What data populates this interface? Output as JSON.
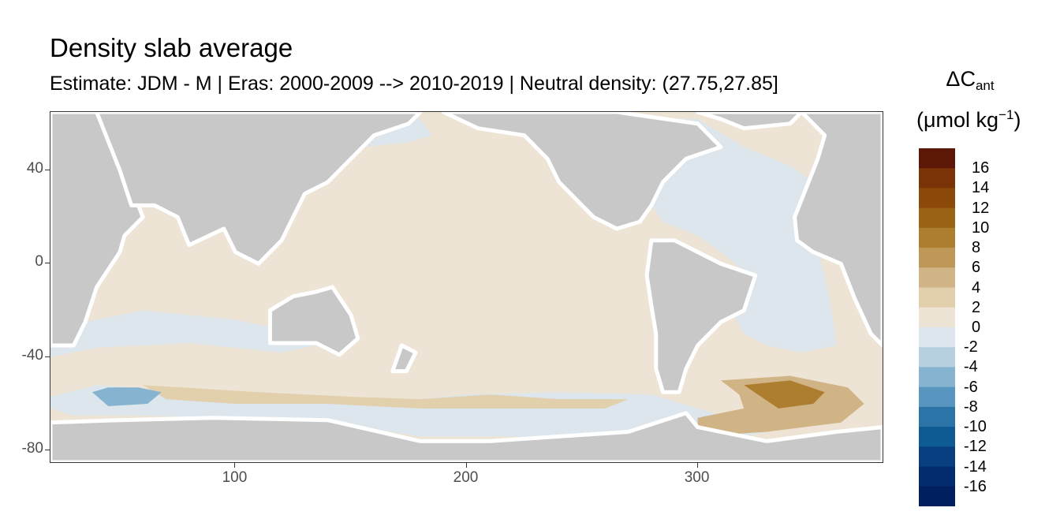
{
  "chart_data": {
    "type": "heatmap",
    "title": "Density slab average",
    "subtitle": "Estimate: JDM - M | Eras: 2000-2009 --> 2010-2019 | Neutral density: (27.75,27.85]",
    "xlabel": "",
    "ylabel": "",
    "x_ticks": [
      100,
      200,
      300
    ],
    "y_ticks": [
      40,
      0,
      -40,
      -80
    ],
    "xlim": [
      20,
      380
    ],
    "ylim": [
      -85,
      65
    ],
    "land_color": "#c8c8c8",
    "missing_color": "#ffffff",
    "legend": {
      "title": "ΔC",
      "title_subscript": "ant",
      "unit_prefix": "(μmol kg",
      "unit_superscript": "−1",
      "unit_suffix": ")",
      "labels": [
        "16",
        "14",
        "12",
        "10",
        "8",
        "6",
        "4",
        "2",
        "0",
        "-2",
        "-4",
        "-6",
        "-8",
        "-10",
        "-12",
        "-14",
        "-16"
      ],
      "colors": [
        "#5c1707",
        "#7a3306",
        "#8c4a0a",
        "#9a6215",
        "#ad7e30",
        "#bf9858",
        "#d0b485",
        "#e2cfac",
        "#ede4d5",
        "#dce6ec",
        "#b6d0e0",
        "#86b4d0",
        "#5896bf",
        "#2b74a8",
        "#0e5a93",
        "#073f80",
        "#032c6e",
        "#011f5f"
      ]
    },
    "regions": [
      {
        "name": "ocean-background",
        "value": 0.8,
        "points": [
          [
            20,
            65
          ],
          [
            380,
            65
          ],
          [
            380,
            -85
          ],
          [
            20,
            -85
          ]
        ]
      },
      {
        "name": "north-atlantic-negative",
        "value": -0.8,
        "points": [
          [
            270,
            62
          ],
          [
            300,
            62
          ],
          [
            320,
            50
          ],
          [
            340,
            42
          ],
          [
            350,
            35
          ],
          [
            353,
            20
          ],
          [
            352,
            5
          ],
          [
            355,
            -5
          ],
          [
            358,
            -20
          ],
          [
            360,
            -35
          ],
          [
            345,
            -38
          ],
          [
            330,
            -35
          ],
          [
            320,
            -30
          ],
          [
            315,
            -20
          ],
          [
            325,
            -10
          ],
          [
            320,
            -3
          ],
          [
            310,
            5
          ],
          [
            300,
            12
          ],
          [
            285,
            18
          ],
          [
            278,
            28
          ],
          [
            285,
            40
          ]
        ]
      },
      {
        "name": "north-pacific-negative",
        "value": -0.6,
        "points": [
          [
            140,
            60
          ],
          [
            155,
            50
          ],
          [
            175,
            52
          ],
          [
            185,
            55
          ],
          [
            180,
            62
          ],
          [
            150,
            63
          ]
        ]
      },
      {
        "name": "indian-ocean-negative-band",
        "value": -0.7,
        "points": [
          [
            20,
            -28
          ],
          [
            60,
            -20
          ],
          [
            100,
            -24
          ],
          [
            130,
            -30
          ],
          [
            140,
            -34
          ],
          [
            120,
            -38
          ],
          [
            80,
            -34
          ],
          [
            40,
            -36
          ],
          [
            20,
            -40
          ]
        ]
      },
      {
        "name": "southern-ocean-negative",
        "value": -1.2,
        "points": [
          [
            20,
            -57
          ],
          [
            40,
            -52
          ],
          [
            80,
            -55
          ],
          [
            120,
            -58
          ],
          [
            160,
            -60
          ],
          [
            200,
            -56
          ],
          [
            240,
            -55
          ],
          [
            280,
            -56
          ],
          [
            300,
            -62
          ],
          [
            320,
            -68
          ],
          [
            330,
            -72
          ],
          [
            300,
            -78
          ],
          [
            260,
            -76
          ],
          [
            220,
            -74
          ],
          [
            180,
            -74
          ],
          [
            140,
            -68
          ],
          [
            100,
            -66
          ],
          [
            60,
            -65
          ],
          [
            30,
            -65
          ],
          [
            20,
            -62
          ]
        ]
      },
      {
        "name": "southern-ocean-positive-band",
        "value": 2.5,
        "points": [
          [
            60,
            -52
          ],
          [
            110,
            -55
          ],
          [
            150,
            -57
          ],
          [
            180,
            -58
          ],
          [
            210,
            -56
          ],
          [
            240,
            -58
          ],
          [
            270,
            -58
          ],
          [
            260,
            -62
          ],
          [
            220,
            -62
          ],
          [
            180,
            -62
          ],
          [
            140,
            -60
          ],
          [
            100,
            -60
          ],
          [
            70,
            -58
          ]
        ]
      },
      {
        "name": "weddell-positive",
        "value": 5.5,
        "points": [
          [
            310,
            -50
          ],
          [
            340,
            -48
          ],
          [
            365,
            -53
          ],
          [
            372,
            -60
          ],
          [
            362,
            -68
          ],
          [
            330,
            -72
          ],
          [
            300,
            -74
          ],
          [
            300,
            -66
          ],
          [
            320,
            -62
          ],
          [
            318,
            -56
          ]
        ]
      },
      {
        "name": "weddell-core",
        "value": 8.5,
        "points": [
          [
            320,
            -52
          ],
          [
            340,
            -50
          ],
          [
            355,
            -55
          ],
          [
            350,
            -60
          ],
          [
            335,
            -62
          ]
        ]
      },
      {
        "name": "indian-sector-strong-negative",
        "value": -5.0,
        "points": [
          [
            38,
            -55
          ],
          [
            45,
            -53
          ],
          [
            58,
            -53
          ],
          [
            68,
            -55
          ],
          [
            62,
            -60
          ],
          [
            45,
            -61
          ]
        ]
      }
    ],
    "land": [
      {
        "name": "africa",
        "points": [
          [
            20,
            65
          ],
          [
            40,
            65
          ],
          [
            50,
            45
          ],
          [
            60,
            20
          ],
          [
            52,
            12
          ],
          [
            50,
            5
          ],
          [
            40,
            -10
          ],
          [
            35,
            -25
          ],
          [
            30,
            -35
          ],
          [
            20,
            -35
          ]
        ]
      },
      {
        "name": "asia",
        "points": [
          [
            40,
            65
          ],
          [
            180,
            65
          ],
          [
            175,
            60
          ],
          [
            160,
            55
          ],
          [
            150,
            45
          ],
          [
            140,
            35
          ],
          [
            130,
            30
          ],
          [
            125,
            20
          ],
          [
            120,
            10
          ],
          [
            110,
            0
          ],
          [
            100,
            5
          ],
          [
            95,
            15
          ],
          [
            80,
            8
          ],
          [
            75,
            20
          ],
          [
            65,
            25
          ],
          [
            55,
            25
          ],
          [
            50,
            40
          ]
        ]
      },
      {
        "name": "australia",
        "points": [
          [
            115,
            -20
          ],
          [
            125,
            -14
          ],
          [
            135,
            -12
          ],
          [
            142,
            -10
          ],
          [
            150,
            -22
          ],
          [
            153,
            -32
          ],
          [
            145,
            -39
          ],
          [
            135,
            -34
          ],
          [
            115,
            -34
          ]
        ]
      },
      {
        "name": "new-zealand",
        "points": [
          [
            172,
            -35
          ],
          [
            178,
            -38
          ],
          [
            174,
            -46
          ],
          [
            168,
            -46
          ]
        ]
      },
      {
        "name": "north-america",
        "points": [
          [
            190,
            65
          ],
          [
            265,
            65
          ],
          [
            300,
            60
          ],
          [
            310,
            50
          ],
          [
            295,
            45
          ],
          [
            285,
            35
          ],
          [
            280,
            25
          ],
          [
            275,
            18
          ],
          [
            265,
            15
          ],
          [
            255,
            20
          ],
          [
            250,
            25
          ],
          [
            240,
            35
          ],
          [
            235,
            45
          ],
          [
            225,
            55
          ],
          [
            205,
            58
          ]
        ]
      },
      {
        "name": "south-america",
        "points": [
          [
            280,
            10
          ],
          [
            290,
            10
          ],
          [
            300,
            5
          ],
          [
            310,
            0
          ],
          [
            325,
            -5
          ],
          [
            320,
            -20
          ],
          [
            310,
            -25
          ],
          [
            300,
            -35
          ],
          [
            295,
            -45
          ],
          [
            292,
            -55
          ],
          [
            285,
            -55
          ],
          [
            282,
            -45
          ],
          [
            282,
            -30
          ],
          [
            280,
            -18
          ],
          [
            278,
            -5
          ]
        ]
      },
      {
        "name": "europe-africa-wrap",
        "points": [
          [
            345,
            65
          ],
          [
            380,
            65
          ],
          [
            380,
            -35
          ],
          [
            375,
            -30
          ],
          [
            368,
            -15
          ],
          [
            362,
            0
          ],
          [
            350,
            5
          ],
          [
            343,
            10
          ],
          [
            342,
            20
          ],
          [
            348,
            35
          ],
          [
            352,
            45
          ],
          [
            355,
            55
          ]
        ]
      },
      {
        "name": "antarctica",
        "points": [
          [
            20,
            -68
          ],
          [
            50,
            -67
          ],
          [
            90,
            -66
          ],
          [
            140,
            -67
          ],
          [
            180,
            -76
          ],
          [
            210,
            -76
          ],
          [
            240,
            -74
          ],
          [
            270,
            -72
          ],
          [
            295,
            -64
          ],
          [
            300,
            -70
          ],
          [
            330,
            -76
          ],
          [
            360,
            -72
          ],
          [
            380,
            -70
          ],
          [
            380,
            -85
          ],
          [
            20,
            -85
          ]
        ]
      },
      {
        "name": "greenland",
        "points": [
          [
            300,
            65
          ],
          [
            345,
            65
          ],
          [
            340,
            60
          ],
          [
            320,
            58
          ],
          [
            310,
            62
          ]
        ]
      }
    ]
  }
}
